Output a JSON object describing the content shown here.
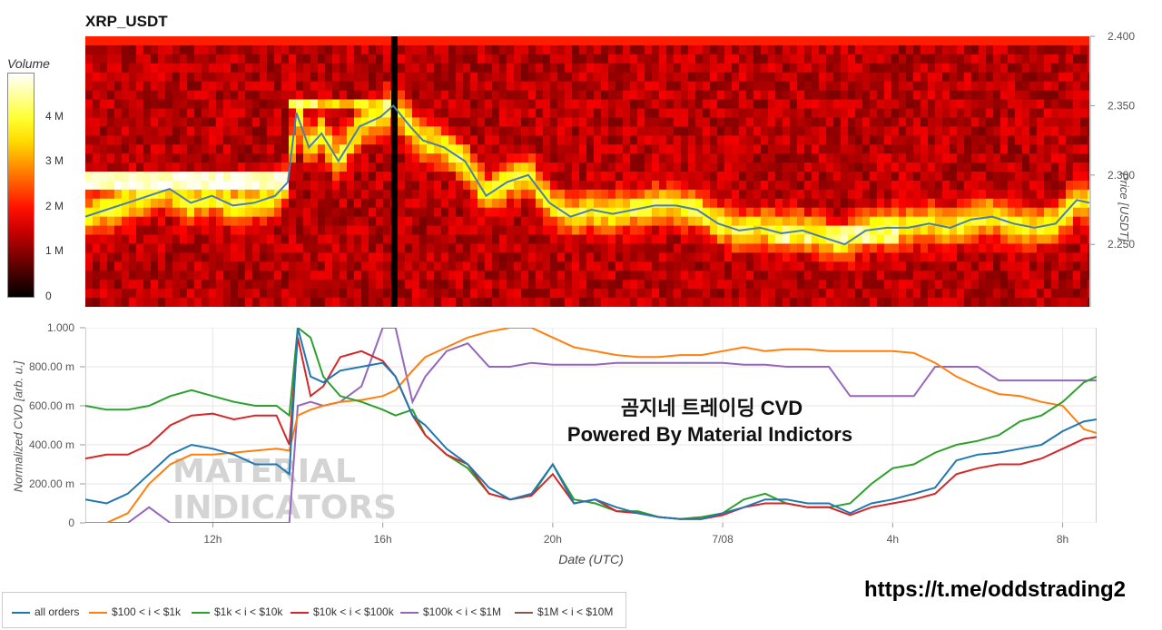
{
  "title": "XRP_USDT",
  "colorbar": {
    "title": "Volume",
    "ticks": [
      "0",
      "1 M",
      "2 M",
      "3 M",
      "4 M"
    ],
    "max_value": 5
  },
  "overlay": {
    "line1": "곰지네 트레이딩 CVD",
    "line2": "Powered By Material Indictors"
  },
  "telegram_url": "https://t.me/oddstrading2",
  "watermark": "MATERIAL INDICATORS",
  "colors": {
    "all_orders": "#1f77b4",
    "range_100_1k": "#ff7f0e",
    "range_1k_10k": "#2ca02c",
    "range_10k_100k": "#d62728",
    "range_100k_1m": "#9467bd",
    "range_1m_10m": "#8c564b",
    "price_line": "#4a7fb0"
  },
  "chart_data": [
    {
      "type": "heatmap",
      "title": "XRP_USDT",
      "ylabel": "Price [USDT]",
      "ylim": [
        2.205,
        2.4
      ],
      "y_ticks": [
        "2.250",
        "2.300",
        "2.350",
        "2.400"
      ],
      "x_range_hours": [
        9.0,
        32.8
      ],
      "price_series": {
        "x": [
          9.0,
          9.5,
          10.0,
          10.5,
          11.0,
          11.5,
          12.0,
          12.5,
          13.0,
          13.5,
          13.8,
          14.0,
          14.3,
          14.6,
          15.0,
          15.5,
          16.0,
          16.3,
          16.7,
          17.0,
          17.5,
          18.0,
          18.5,
          19.0,
          19.5,
          20.0,
          20.5,
          21.0,
          21.5,
          22.0,
          22.5,
          23.0,
          23.5,
          24.0,
          24.5,
          25.0,
          25.5,
          26.0,
          26.5,
          27.0,
          27.5,
          28.0,
          28.5,
          29.0,
          29.5,
          30.0,
          30.5,
          31.0,
          31.5,
          32.0,
          32.5,
          32.8
        ],
        "y": [
          2.27,
          2.275,
          2.28,
          2.285,
          2.29,
          2.28,
          2.285,
          2.278,
          2.28,
          2.285,
          2.295,
          2.345,
          2.32,
          2.33,
          2.31,
          2.335,
          2.342,
          2.35,
          2.335,
          2.325,
          2.32,
          2.31,
          2.285,
          2.295,
          2.3,
          2.28,
          2.27,
          2.275,
          2.272,
          2.275,
          2.278,
          2.278,
          2.275,
          2.265,
          2.26,
          2.262,
          2.258,
          2.26,
          2.255,
          2.25,
          2.26,
          2.262,
          2.262,
          2.265,
          2.262,
          2.268,
          2.27,
          2.265,
          2.262,
          2.265,
          2.282,
          2.28
        ]
      }
    },
    {
      "type": "line",
      "xlabel": "Date (UTC)",
      "ylabel": "Normalized CVD [arb. u.]",
      "ylim": [
        0,
        1.0
      ],
      "x_range_hours": [
        9.0,
        32.8
      ],
      "y_ticks": [
        "0",
        "200.00 m",
        "400.00 m",
        "600.00 m",
        "800.00 m",
        "1.000"
      ],
      "x_ticks": [
        "12h",
        "16h",
        "20h",
        "7/08",
        "4h",
        "8h"
      ],
      "x_tick_hours": [
        12,
        16,
        20,
        24,
        28,
        32
      ],
      "x": [
        9.0,
        9.5,
        10.0,
        10.5,
        11.0,
        11.5,
        12.0,
        12.5,
        13.0,
        13.5,
        13.8,
        14.0,
        14.3,
        14.6,
        15.0,
        15.5,
        16.0,
        16.3,
        16.7,
        17.0,
        17.5,
        18.0,
        18.5,
        19.0,
        19.5,
        20.0,
        20.5,
        21.0,
        21.5,
        22.0,
        22.5,
        23.0,
        23.5,
        24.0,
        24.5,
        25.0,
        25.5,
        26.0,
        26.5,
        27.0,
        27.5,
        28.0,
        28.5,
        29.0,
        29.5,
        30.0,
        30.5,
        31.0,
        31.5,
        32.0,
        32.5,
        32.8
      ],
      "series": [
        {
          "name": "all orders",
          "values": [
            0.12,
            0.1,
            0.15,
            0.25,
            0.35,
            0.4,
            0.38,
            0.35,
            0.3,
            0.3,
            0.25,
            1.0,
            0.75,
            0.72,
            0.78,
            0.8,
            0.82,
            0.75,
            0.55,
            0.5,
            0.38,
            0.3,
            0.18,
            0.12,
            0.15,
            0.3,
            0.1,
            0.12,
            0.08,
            0.05,
            0.03,
            0.02,
            0.02,
            0.05,
            0.08,
            0.12,
            0.12,
            0.1,
            0.1,
            0.05,
            0.1,
            0.12,
            0.15,
            0.18,
            0.32,
            0.35,
            0.36,
            0.38,
            0.4,
            0.47,
            0.52,
            0.53
          ]
        },
        {
          "name": "$100 < i < $1k",
          "values": [
            0.0,
            0.0,
            0.05,
            0.2,
            0.3,
            0.35,
            0.35,
            0.36,
            0.37,
            0.38,
            0.37,
            0.55,
            0.58,
            0.6,
            0.62,
            0.63,
            0.65,
            0.68,
            0.78,
            0.85,
            0.9,
            0.95,
            0.98,
            1.0,
            1.0,
            0.95,
            0.9,
            0.88,
            0.86,
            0.85,
            0.85,
            0.86,
            0.86,
            0.88,
            0.9,
            0.88,
            0.89,
            0.89,
            0.88,
            0.88,
            0.88,
            0.88,
            0.87,
            0.82,
            0.75,
            0.7,
            0.66,
            0.65,
            0.62,
            0.6,
            0.48,
            0.46
          ]
        },
        {
          "name": "$1k < i < $10k",
          "values": [
            0.6,
            0.58,
            0.58,
            0.6,
            0.65,
            0.68,
            0.65,
            0.62,
            0.6,
            0.6,
            0.55,
            1.0,
            0.95,
            0.75,
            0.65,
            0.62,
            0.58,
            0.55,
            0.58,
            0.45,
            0.35,
            0.28,
            0.15,
            0.12,
            0.14,
            0.3,
            0.12,
            0.1,
            0.06,
            0.06,
            0.03,
            0.02,
            0.03,
            0.05,
            0.12,
            0.15,
            0.1,
            0.08,
            0.08,
            0.1,
            0.2,
            0.28,
            0.3,
            0.36,
            0.4,
            0.42,
            0.45,
            0.52,
            0.55,
            0.62,
            0.72,
            0.75
          ]
        },
        {
          "name": "$10k < i < $100k",
          "values": [
            0.33,
            0.35,
            0.35,
            0.4,
            0.5,
            0.55,
            0.56,
            0.53,
            0.55,
            0.55,
            0.4,
            0.95,
            0.65,
            0.7,
            0.85,
            0.88,
            0.83,
            0.75,
            0.55,
            0.45,
            0.35,
            0.3,
            0.15,
            0.12,
            0.14,
            0.25,
            0.1,
            0.12,
            0.06,
            0.05,
            0.03,
            0.02,
            0.02,
            0.04,
            0.08,
            0.1,
            0.1,
            0.08,
            0.08,
            0.04,
            0.08,
            0.1,
            0.12,
            0.15,
            0.25,
            0.28,
            0.3,
            0.3,
            0.33,
            0.38,
            0.43,
            0.44
          ]
        },
        {
          "name": "$100k < i < $1M",
          "values": [
            0.0,
            0.0,
            0.0,
            0.08,
            0.0,
            0.0,
            0.0,
            0.0,
            0.0,
            0.0,
            0.0,
            0.6,
            0.62,
            0.6,
            0.62,
            0.7,
            1.0,
            1.0,
            0.62,
            0.75,
            0.88,
            0.92,
            0.8,
            0.8,
            0.82,
            0.81,
            0.81,
            0.81,
            0.82,
            0.82,
            0.82,
            0.82,
            0.82,
            0.82,
            0.81,
            0.81,
            0.8,
            0.8,
            0.8,
            0.65,
            0.65,
            0.65,
            0.65,
            0.8,
            0.8,
            0.8,
            0.73,
            0.73,
            0.73,
            0.73,
            0.73,
            0.73
          ]
        },
        {
          "name": "$1M < i < $10M",
          "values": [
            null,
            null,
            null,
            null,
            null,
            null,
            null,
            null,
            null,
            null,
            null,
            null,
            null,
            null,
            null,
            null,
            null,
            null,
            null,
            null,
            null,
            null,
            null,
            null,
            null,
            null,
            null,
            null,
            null,
            null,
            null,
            null,
            null,
            null,
            null,
            null,
            null,
            null,
            null,
            null,
            null,
            null,
            null,
            null,
            null,
            null,
            null,
            null,
            null,
            null,
            null,
            null
          ]
        }
      ]
    }
  ]
}
